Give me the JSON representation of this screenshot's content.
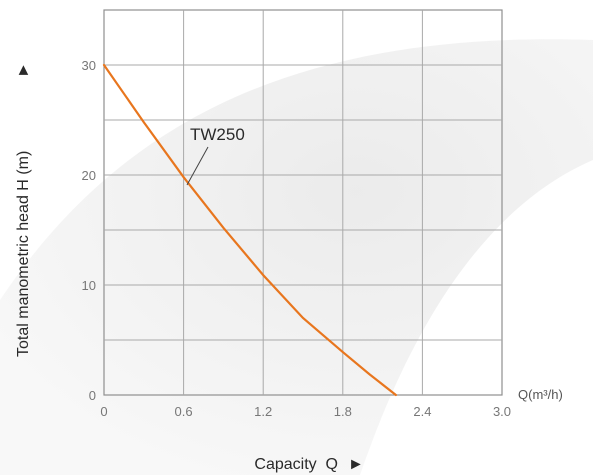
{
  "chart_data": {
    "type": "line",
    "xlabel": "Capacity  Q",
    "xlabel_arrow": "►",
    "ylabel": "Total manometric head H (m)",
    "ylabel_arrow": "►",
    "x_unit_label": "Q(m³/h)",
    "xlim": [
      0,
      3.0
    ],
    "ylim": [
      0,
      35
    ],
    "x_ticks": [
      0,
      0.6,
      1.2,
      1.8,
      2.4,
      3.0
    ],
    "x_tick_labels": [
      "0",
      "0.6",
      "1.2",
      "1.8",
      "2.4",
      "3.0"
    ],
    "y_ticks": [
      0,
      10,
      20,
      30
    ],
    "y_tick_labels": [
      "0",
      "10",
      "20",
      "30"
    ],
    "grid": true,
    "series": [
      {
        "name": "TW250",
        "color": "#e8761e",
        "x": [
          0,
          0.3,
          0.6,
          0.9,
          1.2,
          1.5,
          1.8,
          2.0,
          2.2
        ],
        "y": [
          30,
          24.8,
          19.8,
          15.2,
          10.9,
          7.0,
          3.9,
          1.9,
          0
        ]
      }
    ]
  }
}
